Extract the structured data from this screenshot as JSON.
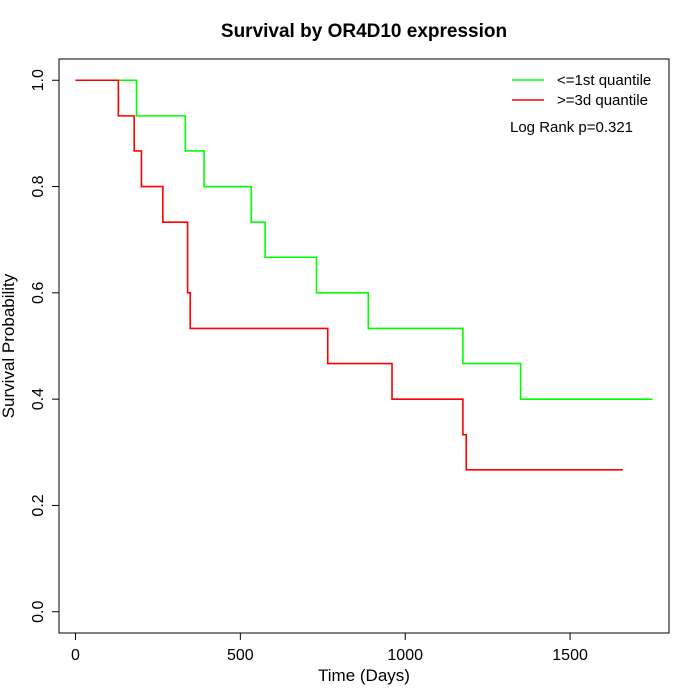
{
  "chart_data": {
    "type": "line",
    "title": "Survival by OR4D10 expression",
    "xlabel": "Time (Days)",
    "ylabel": "Survival Probability",
    "xlim": [
      -50,
      1800
    ],
    "ylim": [
      -0.04,
      1.04
    ],
    "xticks": [
      0,
      500,
      1000,
      1500
    ],
    "yticks": [
      0.0,
      0.2,
      0.4,
      0.6,
      0.8,
      1.0
    ],
    "xtick_labels": [
      "0",
      "500",
      "1000",
      "1500"
    ],
    "ytick_labels": [
      "0.0",
      "0.2",
      "0.4",
      "0.6",
      "0.8",
      "1.0"
    ],
    "grid": false,
    "legend_position": "top-right",
    "annotation": "Log Rank p=0.321",
    "series": [
      {
        "name": "<=1st quantile",
        "color": "#00ff00",
        "step": true,
        "x": [
          0,
          185,
          333,
          390,
          533,
          575,
          731,
          888,
          1175,
          1350,
          1750
        ],
        "y": [
          1.0,
          0.933,
          0.867,
          0.8,
          0.733,
          0.667,
          0.6,
          0.533,
          0.467,
          0.4,
          0.4
        ]
      },
      {
        "name": ">=3d quantile",
        "color": "#ff0000",
        "step": true,
        "x": [
          0,
          130,
          178,
          200,
          265,
          340,
          348,
          765,
          960,
          1175,
          1185,
          1660
        ],
        "y": [
          1.0,
          0.933,
          0.867,
          0.8,
          0.733,
          0.6,
          0.533,
          0.467,
          0.4,
          0.333,
          0.267,
          0.267
        ]
      }
    ]
  }
}
